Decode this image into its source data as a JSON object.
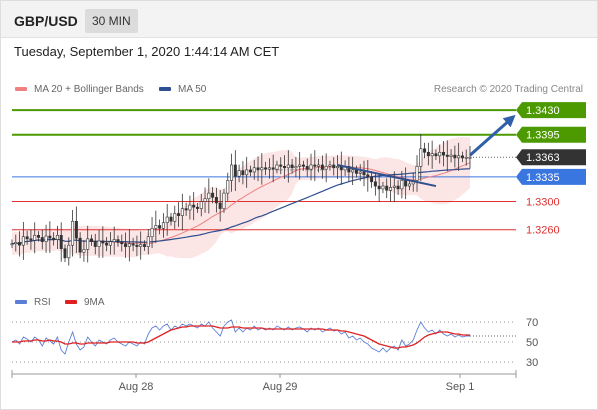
{
  "header": {
    "symbol": "GBP/USD",
    "interval": "30 MIN"
  },
  "timestamp": "Tuesday, September 1, 2020 1:44:14 AM CET",
  "legend": {
    "ma20": {
      "label": "MA 20 + Bollinger Bands",
      "color": "#f08080"
    },
    "ma50": {
      "label": "MA 50",
      "color": "#2f4f8f"
    }
  },
  "credit": "Research © 2020 Trading Central",
  "rsi_legend": {
    "rsi": {
      "label": "RSI",
      "color": "#5b7fd6"
    },
    "ma9": {
      "label": "9MA",
      "color": "#e02020"
    }
  },
  "colors": {
    "resistance": "#4c9a00",
    "pivot": "#3a76e0",
    "support": "#e03030",
    "last": "#333333",
    "arrow": "#2f5fa8",
    "trend": "#2f4f8f"
  },
  "chart_data": [
    {
      "type": "candlestick",
      "title": "GBP/USD",
      "x_ticks": [
        "Aug 28",
        "Aug 29",
        "Sep 1"
      ],
      "ylim": [
        1.318,
        1.345
      ],
      "levels": [
        {
          "label": "1.3430",
          "value": 1.343,
          "kind": "resistance"
        },
        {
          "label": "1.3395",
          "value": 1.3395,
          "kind": "resistance"
        },
        {
          "label": "1.3363",
          "value": 1.3363,
          "kind": "last"
        },
        {
          "label": "1.3335",
          "value": 1.3335,
          "kind": "pivot"
        },
        {
          "label": "1.3300",
          "value": 1.33,
          "kind": "support"
        },
        {
          "label": "1.3260",
          "value": 1.326,
          "kind": "support"
        }
      ],
      "price": [
        1.324,
        1.3242,
        1.3238,
        1.325,
        1.3247,
        1.3245,
        1.3252,
        1.3249,
        1.3243,
        1.3251,
        1.3248,
        1.3246,
        1.3252,
        1.3233,
        1.322,
        1.3238,
        1.3272,
        1.3248,
        1.3228,
        1.3232,
        1.3247,
        1.3243,
        1.3236,
        1.3244,
        1.3241,
        1.3238,
        1.3243,
        1.3246,
        1.3242,
        1.324,
        1.3236,
        1.324,
        1.3238,
        1.3236,
        1.3239,
        1.3236,
        1.325,
        1.3262,
        1.3266,
        1.3262,
        1.327,
        1.3278,
        1.3272,
        1.3283,
        1.328,
        1.329,
        1.3288,
        1.3295,
        1.3292,
        1.329,
        1.33,
        1.3304,
        1.3312,
        1.3306,
        1.3298,
        1.329,
        1.3312,
        1.333,
        1.3352,
        1.3336,
        1.3344,
        1.3338,
        1.3345,
        1.3342,
        1.3348,
        1.3345,
        1.3348,
        1.3346,
        1.3348,
        1.3346,
        1.3352,
        1.335,
        1.3348,
        1.3352,
        1.3348,
        1.335,
        1.3352,
        1.335,
        1.3346,
        1.3352,
        1.335,
        1.3352,
        1.3346,
        1.335,
        1.3352,
        1.3348,
        1.335,
        1.3345,
        1.335,
        1.3342,
        1.3345,
        1.334,
        1.3342,
        1.3338,
        1.3335,
        1.3328,
        1.3322,
        1.3318,
        1.3322,
        1.3316,
        1.332,
        1.3322,
        1.3318,
        1.333,
        1.3322,
        1.3325,
        1.333,
        1.335,
        1.3375,
        1.337,
        1.3365,
        1.3368,
        1.3365,
        1.337,
        1.3366,
        1.3364,
        1.3366,
        1.3362,
        1.3365,
        1.3362,
        1.3363,
        1.3363
      ],
      "arrow": {
        "from": 1.3363,
        "to": 1.343
      },
      "series": [
        {
          "name": "MA 20 + Bollinger Bands"
        },
        {
          "name": "MA 50"
        }
      ]
    },
    {
      "type": "line",
      "yticks": [
        70,
        50,
        30
      ],
      "ylim": [
        20,
        80
      ],
      "x_ticks": [
        "Aug 28",
        "Aug 29",
        "Sep 1"
      ],
      "series": [
        {
          "name": "RSI",
          "values": [
            50,
            52,
            48,
            55,
            53,
            50,
            55,
            52,
            46,
            54,
            51,
            48,
            55,
            42,
            38,
            50,
            60,
            48,
            42,
            45,
            55,
            50,
            46,
            52,
            50,
            48,
            52,
            54,
            50,
            48,
            46,
            50,
            48,
            46,
            50,
            48,
            58,
            64,
            66,
            62,
            66,
            68,
            62,
            66,
            64,
            68,
            66,
            68,
            66,
            64,
            68,
            66,
            70,
            64,
            60,
            56,
            66,
            70,
            72,
            60,
            64,
            60,
            64,
            62,
            66,
            62,
            64,
            62,
            64,
            62,
            66,
            64,
            62,
            65,
            62,
            64,
            65,
            63,
            60,
            64,
            62,
            64,
            60,
            62,
            64,
            61,
            62,
            58,
            60,
            54,
            56,
            52,
            54,
            50,
            48,
            44,
            42,
            40,
            44,
            40,
            44,
            46,
            42,
            52,
            46,
            48,
            52,
            62,
            70,
            64,
            60,
            62,
            58,
            62,
            58,
            56,
            58,
            55,
            57,
            55,
            56,
            56
          ]
        },
        {
          "name": "9MA",
          "values": [
            50,
            50,
            50,
            51,
            51,
            51,
            52,
            52,
            51,
            51,
            52,
            51,
            51,
            50,
            48,
            48,
            49,
            49,
            48,
            48,
            49,
            49,
            49,
            49,
            49,
            49,
            50,
            50,
            50,
            50,
            50,
            50,
            50,
            49,
            49,
            49,
            50,
            52,
            54,
            56,
            58,
            60,
            62,
            63,
            64,
            65,
            65,
            66,
            66,
            66,
            66,
            66,
            66,
            66,
            65,
            64,
            64,
            64,
            65,
            65,
            65,
            64,
            64,
            64,
            64,
            64,
            64,
            63,
            63,
            63,
            63,
            63,
            63,
            63,
            63,
            63,
            63,
            63,
            63,
            63,
            63,
            63,
            63,
            62,
            62,
            62,
            62,
            61,
            61,
            60,
            59,
            58,
            57,
            56,
            54,
            52,
            50,
            48,
            47,
            46,
            45,
            44,
            44,
            45,
            45,
            46,
            47,
            49,
            52,
            55,
            57,
            58,
            59,
            60,
            60,
            60,
            59,
            58,
            58,
            57,
            57,
            57
          ]
        }
      ]
    }
  ]
}
